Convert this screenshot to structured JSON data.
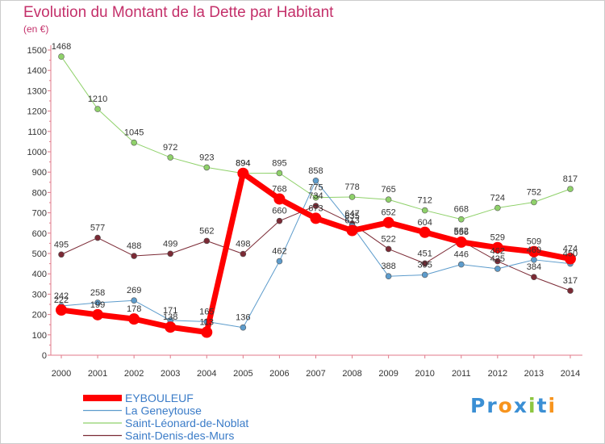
{
  "title": "Evolution du Montant de la Dette par Habitant",
  "unit_label": "(en €)",
  "brand": {
    "text": "Proxiti",
    "letters": [
      {
        "ch": "P",
        "color": "#3b8fd4"
      },
      {
        "ch": "r",
        "color": "#3b8fd4"
      },
      {
        "ch": "o",
        "color": "#f7941d"
      },
      {
        "ch": "x",
        "color": "#3b8fd4"
      },
      {
        "ch": "i",
        "color": "#8dc63f"
      },
      {
        "ch": "t",
        "color": "#3b8fd4"
      },
      {
        "ch": "i",
        "color": "#f7941d"
      }
    ]
  },
  "chart_data": {
    "type": "line",
    "title": "Evolution du Montant de la Dette par Habitant",
    "ylabel": "(en €)",
    "ylim": [
      0,
      1500
    ],
    "yticks": [
      0,
      100,
      200,
      300,
      400,
      500,
      600,
      700,
      800,
      900,
      1000,
      1100,
      1200,
      1300,
      1400,
      1500
    ],
    "x": [
      "2000",
      "2001",
      "2002",
      "2003",
      "2004",
      "2005",
      "2006",
      "2007",
      "2008",
      "2009",
      "2010",
      "2011",
      "2012",
      "2013",
      "2014"
    ],
    "grid": false,
    "legend_position": "bottom-left",
    "series": [
      {
        "name": "Saint-Denis-des-Murs",
        "color": "#7b2a35",
        "width": 1,
        "marker": 3.5,
        "values": [
          495,
          577,
          488,
          499,
          562,
          498,
          660,
          734,
          647,
          522,
          451,
          562,
          462,
          384,
          317
        ],
        "labels": [
          "495",
          "577",
          "488",
          "499",
          "562",
          "498",
          "660",
          "734",
          "647",
          "522",
          "451",
          "562",
          "462",
          "384",
          "317"
        ]
      },
      {
        "name": "Saint-Léonard-de-Noblat",
        "color": "#8fd16a",
        "width": 1,
        "marker": 3.5,
        "values": [
          1468,
          1210,
          1045,
          972,
          923,
          894,
          895,
          775,
          778,
          765,
          712,
          668,
          724,
          752,
          817
        ],
        "labels": [
          "1468",
          "1210",
          "1045",
          "972",
          "923",
          "894",
          "895",
          "775",
          "778",
          "765",
          "712",
          "668",
          "724",
          "752",
          "817"
        ]
      },
      {
        "name": "La Geneytouse",
        "color": "#5d9ccc",
        "width": 1,
        "marker": 3.5,
        "values": [
          242,
          258,
          269,
          171,
          165,
          136,
          462,
          858,
          635,
          388,
          395,
          446,
          425,
          469,
          450
        ],
        "labels": [
          "242",
          "258",
          "269",
          "171",
          "165",
          "136",
          "462",
          "858",
          "635",
          "388",
          "395",
          "446",
          "425",
          "469",
          "450"
        ]
      },
      {
        "name": "EYBOULEUF",
        "color": "#ff0000",
        "width": 7,
        "marker": 7,
        "values": [
          222,
          199,
          178,
          138,
          113,
          894,
          768,
          673,
          613,
          652,
          604,
          556,
          529,
          509,
          474
        ],
        "labels": [
          "222",
          "199",
          "178",
          "138",
          "113",
          "894",
          "768",
          "673",
          "613",
          "652",
          "604",
          "556",
          "529",
          "509",
          "474"
        ]
      }
    ]
  }
}
